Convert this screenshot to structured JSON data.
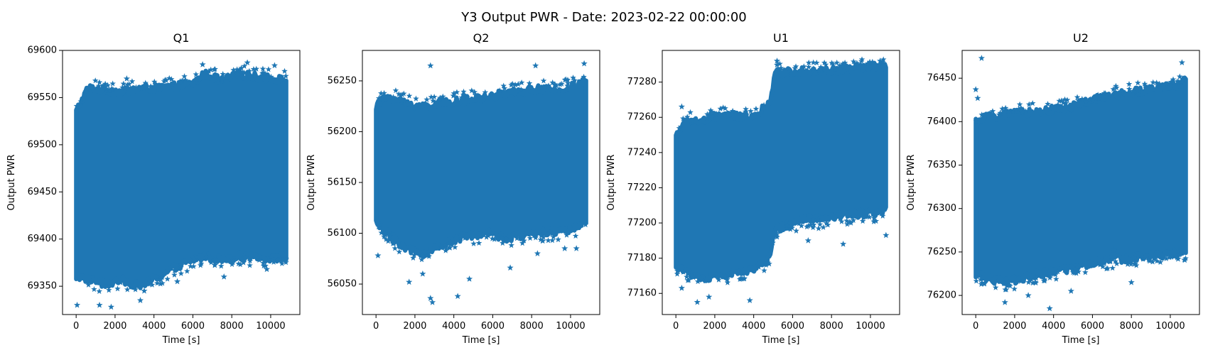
{
  "figure": {
    "suptitle": "Y3 Output PWR - Date: 2023-02-22 00:00:00"
  },
  "colors": {
    "marker": "#1f77b4",
    "axes": "#000000",
    "background": "#ffffff"
  },
  "chart_data": [
    {
      "type": "scatter",
      "title": "Q1",
      "xlabel": "Time [s]",
      "ylabel": "Output PWR",
      "marker": "star",
      "xlim": [
        -700,
        11500
      ],
      "ylim": [
        69320,
        69600
      ],
      "xticks": [
        0,
        2000,
        4000,
        6000,
        8000,
        10000
      ],
      "yticks": [
        69350,
        69400,
        69450,
        69500,
        69550,
        69600
      ],
      "x_range": [
        0,
        10800
      ],
      "band": [
        {
          "x": 0,
          "lo": 69360,
          "hi": 69535
        },
        {
          "x": 600,
          "lo": 69358,
          "hi": 69560
        },
        {
          "x": 1500,
          "lo": 69352,
          "hi": 69558
        },
        {
          "x": 2400,
          "lo": 69356,
          "hi": 69556
        },
        {
          "x": 3300,
          "lo": 69350,
          "hi": 69560
        },
        {
          "x": 4200,
          "lo": 69360,
          "hi": 69560
        },
        {
          "x": 5100,
          "lo": 69370,
          "hi": 69562
        },
        {
          "x": 6000,
          "lo": 69378,
          "hi": 69565
        },
        {
          "x": 6600,
          "lo": 69382,
          "hi": 69575
        },
        {
          "x": 7500,
          "lo": 69378,
          "hi": 69568
        },
        {
          "x": 8400,
          "lo": 69382,
          "hi": 69575
        },
        {
          "x": 9300,
          "lo": 69380,
          "hi": 69572
        },
        {
          "x": 10200,
          "lo": 69380,
          "hi": 69570
        },
        {
          "x": 10800,
          "lo": 69382,
          "hi": 69568
        }
      ],
      "outliers": [
        {
          "x": 50,
          "y": 69330
        },
        {
          "x": 1800,
          "y": 69328
        },
        {
          "x": 1200,
          "y": 69330
        },
        {
          "x": 3300,
          "y": 69335
        },
        {
          "x": 3500,
          "y": 69345
        },
        {
          "x": 6500,
          "y": 69585
        },
        {
          "x": 8800,
          "y": 69587
        },
        {
          "x": 10200,
          "y": 69584
        },
        {
          "x": 2600,
          "y": 69570
        },
        {
          "x": 7600,
          "y": 69360
        },
        {
          "x": 5200,
          "y": 69355
        },
        {
          "x": 9800,
          "y": 69368
        }
      ]
    },
    {
      "type": "scatter",
      "title": "Q2",
      "xlabel": "Time [s]",
      "ylabel": "Output PWR",
      "marker": "star",
      "xlim": [
        -700,
        11500
      ],
      "ylim": [
        56020,
        56280
      ],
      "xticks": [
        0,
        2000,
        4000,
        6000,
        8000,
        10000
      ],
      "yticks": [
        56050,
        56100,
        56150,
        56200,
        56250
      ],
      "x_range": [
        0,
        10800
      ],
      "band": [
        {
          "x": 0,
          "lo": 56110,
          "hi": 56225
        },
        {
          "x": 600,
          "lo": 56100,
          "hi": 56235
        },
        {
          "x": 1500,
          "lo": 56085,
          "hi": 56228
        },
        {
          "x": 2400,
          "lo": 56080,
          "hi": 56225
        },
        {
          "x": 3300,
          "lo": 56088,
          "hi": 56228
        },
        {
          "x": 4200,
          "lo": 56095,
          "hi": 56230
        },
        {
          "x": 5100,
          "lo": 56098,
          "hi": 56232
        },
        {
          "x": 6000,
          "lo": 56100,
          "hi": 56235
        },
        {
          "x": 6600,
          "lo": 56095,
          "hi": 56238
        },
        {
          "x": 7500,
          "lo": 56098,
          "hi": 56240
        },
        {
          "x": 8400,
          "lo": 56100,
          "hi": 56242
        },
        {
          "x": 9300,
          "lo": 56102,
          "hi": 56240
        },
        {
          "x": 10200,
          "lo": 56105,
          "hi": 56245
        },
        {
          "x": 10800,
          "lo": 56110,
          "hi": 56250
        }
      ],
      "outliers": [
        {
          "x": 2800,
          "y": 56265
        },
        {
          "x": 8200,
          "y": 56265
        },
        {
          "x": 10700,
          "y": 56267
        },
        {
          "x": 2900,
          "y": 56032
        },
        {
          "x": 2800,
          "y": 56036
        },
        {
          "x": 4200,
          "y": 56038
        },
        {
          "x": 1700,
          "y": 56052
        },
        {
          "x": 4800,
          "y": 56055
        },
        {
          "x": 2400,
          "y": 56060
        },
        {
          "x": 6900,
          "y": 56066
        },
        {
          "x": 100,
          "y": 56078
        },
        {
          "x": 10300,
          "y": 56085
        },
        {
          "x": 9700,
          "y": 56085
        },
        {
          "x": 8300,
          "y": 56080
        }
      ]
    },
    {
      "type": "scatter",
      "title": "U1",
      "xlabel": "Time [s]",
      "ylabel": "Output PWR",
      "marker": "star",
      "xlim": [
        -700,
        11500
      ],
      "ylim": [
        77148,
        77298
      ],
      "xticks": [
        0,
        2000,
        4000,
        6000,
        8000,
        10000
      ],
      "yticks": [
        77160,
        77180,
        77200,
        77220,
        77240,
        77260,
        77280
      ],
      "x_range": [
        0,
        10800
      ],
      "band": [
        {
          "x": 0,
          "lo": 77175,
          "hi": 77250
        },
        {
          "x": 600,
          "lo": 77172,
          "hi": 77258
        },
        {
          "x": 1500,
          "lo": 77168,
          "hi": 77258
        },
        {
          "x": 2400,
          "lo": 77170,
          "hi": 77262
        },
        {
          "x": 3300,
          "lo": 77172,
          "hi": 77260
        },
        {
          "x": 4200,
          "lo": 77175,
          "hi": 77262
        },
        {
          "x": 4800,
          "lo": 77180,
          "hi": 77268
        },
        {
          "x": 5100,
          "lo": 77196,
          "hi": 77285
        },
        {
          "x": 6000,
          "lo": 77200,
          "hi": 77286
        },
        {
          "x": 6600,
          "lo": 77202,
          "hi": 77287
        },
        {
          "x": 7500,
          "lo": 77202,
          "hi": 77286
        },
        {
          "x": 8400,
          "lo": 77204,
          "hi": 77287
        },
        {
          "x": 9300,
          "lo": 77205,
          "hi": 77288
        },
        {
          "x": 10200,
          "lo": 77206,
          "hi": 77289
        },
        {
          "x": 10800,
          "lo": 77207,
          "hi": 77288
        }
      ],
      "outliers": [
        {
          "x": 1100,
          "y": 77155
        },
        {
          "x": 3800,
          "y": 77156
        },
        {
          "x": 1700,
          "y": 77158
        },
        {
          "x": 300,
          "y": 77163
        },
        {
          "x": 5200,
          "y": 77292
        },
        {
          "x": 10500,
          "y": 77292
        },
        {
          "x": 6800,
          "y": 77190
        },
        {
          "x": 8600,
          "y": 77188
        },
        {
          "x": 10800,
          "y": 77193
        },
        {
          "x": 300,
          "y": 77266
        }
      ]
    },
    {
      "type": "scatter",
      "title": "U2",
      "xlabel": "Time [s]",
      "ylabel": "Output PWR",
      "marker": "star",
      "xlim": [
        -700,
        11500
      ],
      "ylim": [
        76178,
        76482
      ],
      "xticks": [
        0,
        2000,
        4000,
        6000,
        8000,
        10000
      ],
      "yticks": [
        76200,
        76250,
        76300,
        76350,
        76400,
        76450
      ],
      "x_range": [
        0,
        10800
      ],
      "band": [
        {
          "x": 0,
          "lo": 76225,
          "hi": 76400
        },
        {
          "x": 600,
          "lo": 76220,
          "hi": 76405
        },
        {
          "x": 1500,
          "lo": 76215,
          "hi": 76408
        },
        {
          "x": 2400,
          "lo": 76220,
          "hi": 76410
        },
        {
          "x": 3300,
          "lo": 76225,
          "hi": 76412
        },
        {
          "x": 4200,
          "lo": 76228,
          "hi": 76415
        },
        {
          "x": 5100,
          "lo": 76232,
          "hi": 76418
        },
        {
          "x": 6000,
          "lo": 76238,
          "hi": 76425
        },
        {
          "x": 6600,
          "lo": 76240,
          "hi": 76428
        },
        {
          "x": 7500,
          "lo": 76242,
          "hi": 76432
        },
        {
          "x": 8400,
          "lo": 76245,
          "hi": 76435
        },
        {
          "x": 9300,
          "lo": 76246,
          "hi": 76438
        },
        {
          "x": 10200,
          "lo": 76248,
          "hi": 76442
        },
        {
          "x": 10800,
          "lo": 76250,
          "hi": 76448
        }
      ],
      "outliers": [
        {
          "x": 300,
          "y": 76473
        },
        {
          "x": 0,
          "y": 76437
        },
        {
          "x": 100,
          "y": 76427
        },
        {
          "x": 10600,
          "y": 76468
        },
        {
          "x": 3800,
          "y": 76185
        },
        {
          "x": 1500,
          "y": 76192
        },
        {
          "x": 8000,
          "y": 76215
        },
        {
          "x": 2700,
          "y": 76200
        },
        {
          "x": 4900,
          "y": 76205
        },
        {
          "x": 10400,
          "y": 76242
        },
        {
          "x": 7100,
          "y": 76252
        }
      ]
    }
  ]
}
